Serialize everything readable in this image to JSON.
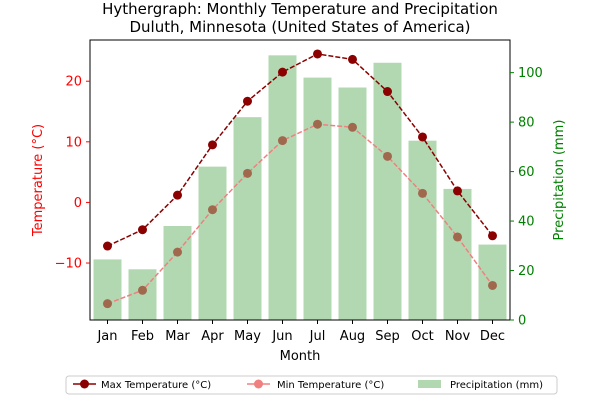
{
  "chart_data": {
    "type": "bar",
    "title": "Hythergraph: Monthly Temperature and Precipitation",
    "subtitle": "Duluth, Minnesota (United States of America)",
    "xlabel": "Month",
    "ylabel_left": "Temperature (°C)",
    "ylabel_right": "Precipitation (mm)",
    "categories": [
      "Jan",
      "Feb",
      "Mar",
      "Apr",
      "May",
      "Jun",
      "Jul",
      "Aug",
      "Sep",
      "Oct",
      "Nov",
      "Dec"
    ],
    "ylim_left": [
      -19.4,
      26.8
    ],
    "ylim_right": [
      0,
      113.2
    ],
    "yticks_left": [
      -10,
      0,
      10,
      20
    ],
    "yticks_right": [
      0,
      20,
      40,
      60,
      80,
      100
    ],
    "series": [
      {
        "name": "Max Temperature (°C)",
        "kind": "line",
        "axis": "left",
        "color": "#8b0000",
        "values": [
          -7.2,
          -4.5,
          1.2,
          9.5,
          16.7,
          21.5,
          24.5,
          23.6,
          18.3,
          10.8,
          1.9,
          -5.5
        ]
      },
      {
        "name": "Min Temperature (°C)",
        "kind": "line",
        "axis": "left",
        "color": "#f08080",
        "marker_color": "#a0694d",
        "values": [
          -16.7,
          -14.5,
          -8.2,
          -1.2,
          4.8,
          10.2,
          12.9,
          12.4,
          7.6,
          1.5,
          -5.7,
          -13.7
        ]
      },
      {
        "name": "Precipitation (mm)",
        "kind": "bar",
        "axis": "right",
        "color": "#b2d8b2",
        "values": [
          24.5,
          20.5,
          38.0,
          62.0,
          82.0,
          107.0,
          98.0,
          94.0,
          104.0,
          72.5,
          53.0,
          30.5
        ]
      }
    ],
    "legend_position": "bottom-center",
    "grid": false
  },
  "colors": {
    "temperature_axis": "#ff0000",
    "precipitation_axis": "#008000"
  }
}
